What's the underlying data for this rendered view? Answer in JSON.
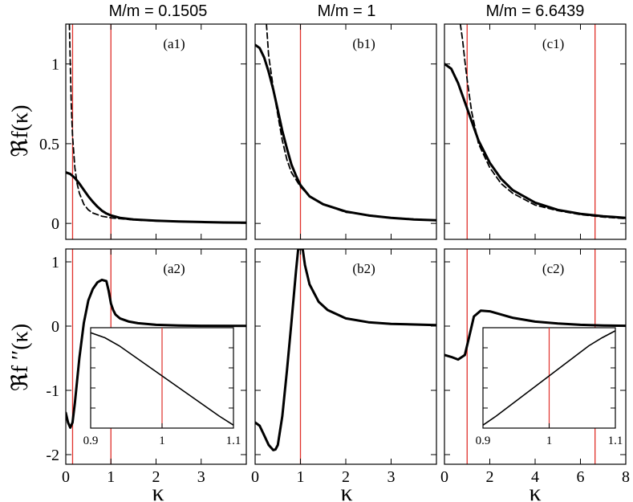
{
  "figure": {
    "column_titles": [
      "M/m = 0.1505",
      "M/m = 1",
      "M/m = 6.6439"
    ],
    "ylabel_top": "ℜf(κ)",
    "ylabel_bottom": "ℜf ′′(κ)",
    "xlabel": "κ",
    "colors": {
      "curve": "#000000",
      "vline": "#e0302a",
      "axis": "#000000"
    }
  },
  "chart_data": [
    {
      "id": "a1",
      "type": "line",
      "panel_label": "(a1)",
      "xlim": [
        0,
        4
      ],
      "ylim": [
        -0.1,
        1.25
      ],
      "yticks": [
        0,
        0.5,
        1
      ],
      "yticklabels": [
        "0",
        "0.5",
        "1"
      ],
      "xticks": [
        0,
        1,
        2,
        3
      ],
      "xticklabels": [],
      "vlines": [
        0.1505,
        1
      ],
      "series": [
        {
          "name": "solid",
          "style": "solid",
          "x": [
            0,
            0.1,
            0.2,
            0.3,
            0.4,
            0.5,
            0.6,
            0.7,
            0.8,
            0.9,
            1.0,
            1.2,
            1.5,
            2.0,
            2.5,
            3.0,
            3.5,
            4.0
          ],
          "y": [
            0.32,
            0.31,
            0.285,
            0.25,
            0.21,
            0.17,
            0.135,
            0.105,
            0.08,
            0.062,
            0.05,
            0.035,
            0.025,
            0.017,
            0.012,
            0.009,
            0.006,
            0.005
          ]
        },
        {
          "name": "dashed",
          "style": "dashed",
          "x": [
            0.08,
            0.1,
            0.12,
            0.15,
            0.2,
            0.25,
            0.3,
            0.4,
            0.5,
            0.6,
            0.8,
            1.0,
            1.5,
            2.0,
            3.0,
            4.0
          ],
          "y": [
            1.25,
            1.0,
            0.75,
            0.55,
            0.35,
            0.25,
            0.19,
            0.12,
            0.085,
            0.065,
            0.045,
            0.035,
            0.022,
            0.015,
            0.008,
            0.005
          ]
        }
      ]
    },
    {
      "id": "b1",
      "type": "line",
      "panel_label": "(b1)",
      "xlim": [
        0,
        4
      ],
      "ylim": [
        -0.1,
        1.25
      ],
      "yticks": [
        0,
        0.5,
        1
      ],
      "yticklabels": [],
      "xticks": [
        0,
        1,
        2,
        3
      ],
      "xticklabels": [],
      "vlines": [
        1
      ],
      "series": [
        {
          "name": "solid",
          "style": "solid",
          "x": [
            0,
            0.1,
            0.2,
            0.3,
            0.4,
            0.5,
            0.6,
            0.7,
            0.8,
            0.9,
            1.0,
            1.2,
            1.5,
            2.0,
            2.5,
            3.0,
            3.5,
            4.0
          ],
          "y": [
            1.12,
            1.1,
            1.04,
            0.95,
            0.84,
            0.71,
            0.58,
            0.47,
            0.37,
            0.3,
            0.24,
            0.17,
            0.12,
            0.075,
            0.05,
            0.035,
            0.025,
            0.02
          ]
        },
        {
          "name": "dashed",
          "style": "dashed",
          "x": [
            0.25,
            0.3,
            0.35,
            0.4,
            0.5,
            0.6,
            0.7,
            0.8,
            1.0,
            1.2,
            1.5,
            2.0,
            3.0,
            4.0
          ],
          "y": [
            1.25,
            1.05,
            0.95,
            0.85,
            0.68,
            0.52,
            0.4,
            0.32,
            0.23,
            0.17,
            0.12,
            0.07,
            0.035,
            0.02
          ]
        }
      ]
    },
    {
      "id": "c1",
      "type": "line",
      "panel_label": "(c1)",
      "xlim": [
        0,
        8
      ],
      "ylim": [
        -0.1,
        1.25
      ],
      "yticks": [
        0,
        0.5,
        1
      ],
      "yticklabels": [],
      "xticks": [
        0,
        2,
        4,
        6,
        8
      ],
      "xticklabels": [],
      "vlines": [
        1,
        6.6439
      ],
      "series": [
        {
          "name": "solid",
          "style": "solid",
          "x": [
            0,
            0.3,
            0.6,
            1.0,
            1.5,
            2.0,
            2.5,
            3.0,
            4.0,
            5.0,
            6.0,
            7.0,
            8.0
          ],
          "y": [
            1.0,
            0.97,
            0.88,
            0.72,
            0.52,
            0.38,
            0.28,
            0.21,
            0.13,
            0.085,
            0.06,
            0.045,
            0.035
          ]
        },
        {
          "name": "dashed",
          "style": "dashed",
          "x": [
            0.7,
            0.8,
            0.9,
            1.0,
            1.2,
            1.5,
            2.0,
            2.5,
            3.0,
            4.0,
            5.0,
            6.0,
            7.0,
            8.0
          ],
          "y": [
            1.25,
            1.15,
            1.02,
            0.9,
            0.7,
            0.5,
            0.35,
            0.25,
            0.19,
            0.115,
            0.08,
            0.055,
            0.04,
            0.03
          ]
        }
      ]
    },
    {
      "id": "a2",
      "type": "line",
      "panel_label": "(a2)",
      "xlim": [
        0,
        4
      ],
      "ylim": [
        -2.15,
        1.2
      ],
      "yticks": [
        -2,
        -1,
        0,
        1
      ],
      "yticklabels": [
        "-2",
        "-1",
        "0",
        "1"
      ],
      "xticks": [
        0,
        1,
        2,
        3
      ],
      "xticklabels": [
        "0",
        "1",
        "2",
        "3"
      ],
      "vlines": [
        0.1505,
        1
      ],
      "series": [
        {
          "name": "solid",
          "style": "solid",
          "x": [
            0,
            0.05,
            0.1,
            0.15,
            0.2,
            0.3,
            0.4,
            0.5,
            0.6,
            0.7,
            0.8,
            0.9,
            0.95,
            1.0,
            1.05,
            1.1,
            1.2,
            1.4,
            1.6,
            2.0,
            2.5,
            3.0,
            4.0
          ],
          "y": [
            -1.35,
            -1.5,
            -1.58,
            -1.5,
            -1.2,
            -0.5,
            0.05,
            0.4,
            0.58,
            0.68,
            0.72,
            0.7,
            0.55,
            0.35,
            0.25,
            0.18,
            0.12,
            0.07,
            0.045,
            0.02,
            0.01,
            0.005,
            0.002
          ]
        }
      ],
      "inset": {
        "xlim": [
          0.9,
          1.1
        ],
        "xticks": [
          0.9,
          1,
          1.1
        ],
        "xticklabels": [
          "0.9",
          "1",
          "1.1"
        ],
        "vline": 1,
        "x": [
          0.9,
          0.92,
          0.94,
          0.96,
          0.98,
          1.0,
          1.02,
          1.04,
          1.06,
          1.08,
          1.1
        ],
        "y": [
          0.95,
          0.9,
          0.82,
          0.72,
          0.62,
          0.52,
          0.42,
          0.32,
          0.22,
          0.12,
          0.03
        ]
      }
    },
    {
      "id": "b2",
      "type": "line",
      "panel_label": "(b2)",
      "xlim": [
        0,
        4
      ],
      "ylim": [
        -2.15,
        1.2
      ],
      "yticks": [
        -2,
        -1,
        0,
        1
      ],
      "yticklabels": [],
      "xticks": [
        0,
        1,
        2,
        3
      ],
      "xticklabels": [
        "0",
        "1",
        "2",
        "3"
      ],
      "vlines": [
        1
      ],
      "series": [
        {
          "name": "solid",
          "style": "solid",
          "x": [
            0,
            0.1,
            0.2,
            0.3,
            0.4,
            0.45,
            0.5,
            0.6,
            0.7,
            0.8,
            0.9,
            0.95,
            1.0,
            1.05,
            1.1,
            1.2,
            1.4,
            1.6,
            2.0,
            2.5,
            3.0,
            4.0
          ],
          "y": [
            -1.5,
            -1.55,
            -1.7,
            -1.85,
            -1.93,
            -1.92,
            -1.85,
            -1.4,
            -0.7,
            0.05,
            0.85,
            1.2,
            1.2,
            1.2,
            0.95,
            0.65,
            0.38,
            0.25,
            0.12,
            0.06,
            0.035,
            0.015
          ]
        }
      ]
    },
    {
      "id": "c2",
      "type": "line",
      "panel_label": "(c2)",
      "xlim": [
        0,
        8
      ],
      "ylim": [
        -2.15,
        1.2
      ],
      "yticks": [
        -2,
        -1,
        0,
        1
      ],
      "yticklabels": [],
      "xticks": [
        0,
        2,
        4,
        6,
        8
      ],
      "xticklabels": [
        "0",
        "2",
        "4",
        "6",
        "8"
      ],
      "vlines": [
        1,
        6.6439
      ],
      "series": [
        {
          "name": "solid",
          "style": "solid",
          "x": [
            0,
            0.3,
            0.6,
            0.9,
            1.1,
            1.3,
            1.6,
            2.0,
            2.5,
            3.0,
            4.0,
            5.0,
            6.0,
            7.0,
            8.0
          ],
          "y": [
            -0.45,
            -0.48,
            -0.52,
            -0.45,
            -0.15,
            0.15,
            0.24,
            0.23,
            0.18,
            0.13,
            0.07,
            0.04,
            0.02,
            0.01,
            0.005
          ]
        }
      ],
      "inset": {
        "xlim": [
          0.9,
          1.1
        ],
        "xticks": [
          0.9,
          1,
          1.1
        ],
        "xticklabels": [
          "0.9",
          "1",
          "1.1"
        ],
        "vline": 1,
        "x": [
          0.9,
          0.92,
          0.94,
          0.96,
          0.98,
          1.0,
          1.02,
          1.04,
          1.06,
          1.08,
          1.1
        ],
        "y": [
          0.03,
          0.12,
          0.22,
          0.32,
          0.42,
          0.52,
          0.62,
          0.72,
          0.82,
          0.9,
          0.97
        ]
      }
    }
  ]
}
